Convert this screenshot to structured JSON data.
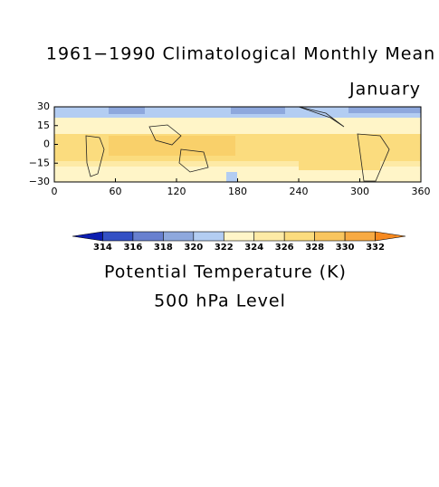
{
  "chart_data": {
    "type": "contour-map",
    "title": "1961−1990 Climatological Monthly Mean",
    "subtitle": "January",
    "xlim": [
      0,
      360
    ],
    "xticks": [
      0,
      60,
      120,
      180,
      240,
      300,
      360
    ],
    "ylim": [
      -30,
      30
    ],
    "yticks": [
      {
        "value": -30,
        "label": "−30"
      },
      {
        "value": -15,
        "label": "−15"
      },
      0,
      15,
      30
    ],
    "colorbar": {
      "levels": [
        314,
        316,
        318,
        320,
        322,
        324,
        326,
        328,
        330,
        332
      ],
      "colors": [
        "#0c1db0",
        "#3350c4",
        "#6880cf",
        "#8ea8dd",
        "#b3cdf2",
        "#fff5c8",
        "#fdeaa6",
        "#fbdc7e",
        "#f9c55e",
        "#f7aa43",
        "#f7891f"
      ],
      "label": "Potential Temperature (K)",
      "note": "500 hPa Level"
    }
  }
}
